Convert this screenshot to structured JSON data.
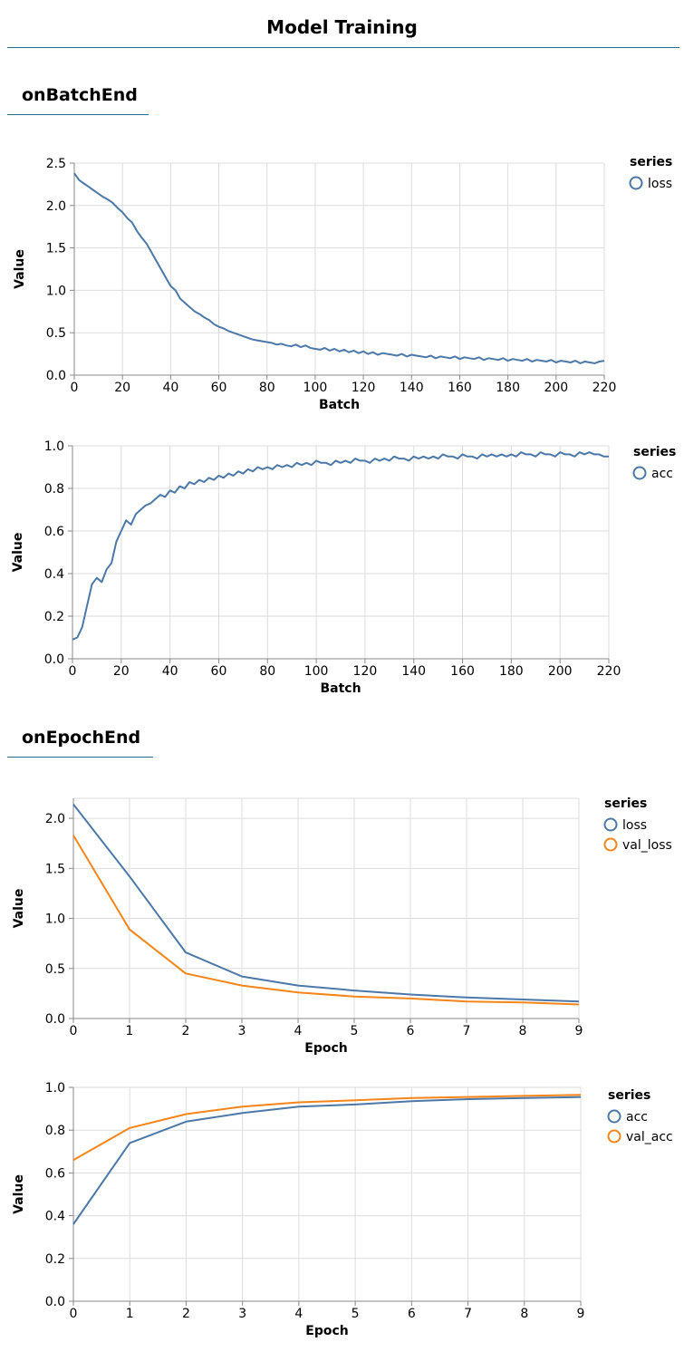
{
  "page": {
    "title": "Model Training"
  },
  "sections": [
    {
      "title": "onBatchEnd"
    },
    {
      "title": "onEpochEnd"
    }
  ],
  "colors": {
    "series1": "#4c78a8",
    "series2": "#f58518",
    "grid": "#dddddd",
    "axis": "#888888",
    "rule": "#1f6f93"
  },
  "chart_data": [
    {
      "type": "line",
      "title": "",
      "xlabel": "Batch",
      "ylabel": "Value",
      "xlim": [
        0,
        220
      ],
      "ylim": [
        0,
        2.5
      ],
      "xticks": [
        0,
        20,
        40,
        60,
        80,
        100,
        120,
        140,
        160,
        180,
        200,
        220
      ],
      "yticks": [
        0,
        0.5,
        1,
        1.5,
        2,
        2.5
      ],
      "ytick_format": "1",
      "grid": true,
      "legend": {
        "title": "series",
        "placement": "right"
      },
      "series": [
        {
          "name": "loss",
          "color": "#4c78a8",
          "x": [
            0,
            2,
            4,
            6,
            8,
            10,
            12,
            14,
            16,
            18,
            20,
            22,
            24,
            26,
            28,
            30,
            32,
            34,
            36,
            38,
            40,
            42,
            44,
            46,
            48,
            50,
            52,
            54,
            56,
            58,
            60,
            62,
            64,
            66,
            68,
            70,
            72,
            74,
            76,
            78,
            80,
            82,
            84,
            86,
            88,
            90,
            92,
            94,
            96,
            98,
            100,
            102,
            104,
            106,
            108,
            110,
            112,
            114,
            116,
            118,
            120,
            122,
            124,
            126,
            128,
            130,
            132,
            134,
            136,
            138,
            140,
            142,
            144,
            146,
            148,
            150,
            152,
            154,
            156,
            158,
            160,
            162,
            164,
            166,
            168,
            170,
            172,
            174,
            176,
            178,
            180,
            182,
            184,
            186,
            188,
            190,
            192,
            194,
            196,
            198,
            200,
            202,
            204,
            206,
            208,
            210,
            212,
            214,
            216,
            218,
            220
          ],
          "values": [
            2.38,
            2.3,
            2.26,
            2.22,
            2.18,
            2.14,
            2.1,
            2.07,
            2.03,
            1.97,
            1.92,
            1.85,
            1.8,
            1.7,
            1.62,
            1.55,
            1.45,
            1.35,
            1.25,
            1.15,
            1.05,
            1.0,
            0.9,
            0.85,
            0.8,
            0.75,
            0.72,
            0.68,
            0.65,
            0.6,
            0.57,
            0.55,
            0.52,
            0.5,
            0.48,
            0.46,
            0.44,
            0.42,
            0.41,
            0.4,
            0.39,
            0.38,
            0.36,
            0.37,
            0.35,
            0.34,
            0.36,
            0.33,
            0.35,
            0.32,
            0.31,
            0.3,
            0.32,
            0.29,
            0.31,
            0.28,
            0.3,
            0.27,
            0.29,
            0.26,
            0.28,
            0.25,
            0.27,
            0.24,
            0.26,
            0.25,
            0.24,
            0.23,
            0.25,
            0.22,
            0.24,
            0.23,
            0.22,
            0.21,
            0.23,
            0.2,
            0.22,
            0.21,
            0.2,
            0.22,
            0.19,
            0.21,
            0.2,
            0.19,
            0.21,
            0.18,
            0.2,
            0.19,
            0.18,
            0.2,
            0.17,
            0.19,
            0.18,
            0.17,
            0.19,
            0.16,
            0.18,
            0.17,
            0.16,
            0.18,
            0.15,
            0.17,
            0.16,
            0.15,
            0.17,
            0.14,
            0.16,
            0.15,
            0.14,
            0.16,
            0.17
          ]
        }
      ]
    },
    {
      "type": "line",
      "title": "",
      "xlabel": "Batch",
      "ylabel": "Value",
      "xlim": [
        0,
        220
      ],
      "ylim": [
        0,
        1
      ],
      "xticks": [
        0,
        20,
        40,
        60,
        80,
        100,
        120,
        140,
        160,
        180,
        200,
        220
      ],
      "yticks": [
        0,
        0.2,
        0.4,
        0.6,
        0.8,
        1
      ],
      "ytick_format": "1",
      "grid": true,
      "legend": {
        "title": "series",
        "placement": "right"
      },
      "series": [
        {
          "name": "acc",
          "color": "#4c78a8",
          "x": [
            0,
            2,
            4,
            6,
            8,
            10,
            12,
            14,
            16,
            18,
            20,
            22,
            24,
            26,
            28,
            30,
            32,
            34,
            36,
            38,
            40,
            42,
            44,
            46,
            48,
            50,
            52,
            54,
            56,
            58,
            60,
            62,
            64,
            66,
            68,
            70,
            72,
            74,
            76,
            78,
            80,
            82,
            84,
            86,
            88,
            90,
            92,
            94,
            96,
            98,
            100,
            102,
            104,
            106,
            108,
            110,
            112,
            114,
            116,
            118,
            120,
            122,
            124,
            126,
            128,
            130,
            132,
            134,
            136,
            138,
            140,
            142,
            144,
            146,
            148,
            150,
            152,
            154,
            156,
            158,
            160,
            162,
            164,
            166,
            168,
            170,
            172,
            174,
            176,
            178,
            180,
            182,
            184,
            186,
            188,
            190,
            192,
            194,
            196,
            198,
            200,
            202,
            204,
            206,
            208,
            210,
            212,
            214,
            216,
            218,
            220
          ],
          "values": [
            0.09,
            0.1,
            0.15,
            0.25,
            0.35,
            0.38,
            0.36,
            0.42,
            0.45,
            0.55,
            0.6,
            0.65,
            0.63,
            0.68,
            0.7,
            0.72,
            0.73,
            0.75,
            0.77,
            0.76,
            0.79,
            0.78,
            0.81,
            0.8,
            0.83,
            0.82,
            0.84,
            0.83,
            0.85,
            0.84,
            0.86,
            0.85,
            0.87,
            0.86,
            0.88,
            0.87,
            0.89,
            0.88,
            0.9,
            0.89,
            0.9,
            0.89,
            0.91,
            0.9,
            0.91,
            0.9,
            0.92,
            0.91,
            0.92,
            0.91,
            0.93,
            0.92,
            0.92,
            0.91,
            0.93,
            0.92,
            0.93,
            0.92,
            0.94,
            0.93,
            0.93,
            0.92,
            0.94,
            0.93,
            0.94,
            0.93,
            0.95,
            0.94,
            0.94,
            0.93,
            0.95,
            0.94,
            0.95,
            0.94,
            0.95,
            0.94,
            0.96,
            0.95,
            0.95,
            0.94,
            0.96,
            0.95,
            0.95,
            0.94,
            0.96,
            0.95,
            0.96,
            0.95,
            0.96,
            0.95,
            0.96,
            0.95,
            0.97,
            0.96,
            0.96,
            0.95,
            0.97,
            0.96,
            0.96,
            0.95,
            0.97,
            0.96,
            0.96,
            0.95,
            0.97,
            0.96,
            0.97,
            0.96,
            0.96,
            0.95,
            0.95
          ]
        }
      ]
    },
    {
      "type": "line",
      "title": "",
      "xlabel": "Epoch",
      "ylabel": "Value",
      "xlim": [
        0,
        9
      ],
      "ylim": [
        0,
        2.2
      ],
      "xticks": [
        0,
        1,
        2,
        3,
        4,
        5,
        6,
        7,
        8,
        9
      ],
      "yticks": [
        0,
        0.5,
        1,
        1.5,
        2
      ],
      "ytick_format": "1",
      "grid": true,
      "legend": {
        "title": "series",
        "placement": "right"
      },
      "series": [
        {
          "name": "loss",
          "color": "#4c78a8",
          "x": [
            0,
            1,
            2,
            3,
            4,
            5,
            6,
            7,
            8,
            9
          ],
          "values": [
            2.14,
            1.42,
            0.66,
            0.42,
            0.33,
            0.28,
            0.24,
            0.21,
            0.19,
            0.17
          ]
        },
        {
          "name": "val_loss",
          "color": "#f58518",
          "x": [
            0,
            1,
            2,
            3,
            4,
            5,
            6,
            7,
            8,
            9
          ],
          "values": [
            1.83,
            0.89,
            0.45,
            0.33,
            0.26,
            0.22,
            0.2,
            0.17,
            0.16,
            0.14
          ]
        }
      ]
    },
    {
      "type": "line",
      "title": "",
      "xlabel": "Epoch",
      "ylabel": "Value",
      "xlim": [
        0,
        9
      ],
      "ylim": [
        0,
        1
      ],
      "xticks": [
        0,
        1,
        2,
        3,
        4,
        5,
        6,
        7,
        8,
        9
      ],
      "yticks": [
        0,
        0.2,
        0.4,
        0.6,
        0.8,
        1
      ],
      "ytick_format": "1",
      "grid": true,
      "legend": {
        "title": "series",
        "placement": "right"
      },
      "series": [
        {
          "name": "acc",
          "color": "#4c78a8",
          "x": [
            0,
            1,
            2,
            3,
            4,
            5,
            6,
            7,
            8,
            9
          ],
          "values": [
            0.36,
            0.74,
            0.84,
            0.88,
            0.91,
            0.92,
            0.935,
            0.945,
            0.95,
            0.955
          ]
        },
        {
          "name": "val_acc",
          "color": "#f58518",
          "x": [
            0,
            1,
            2,
            3,
            4,
            5,
            6,
            7,
            8,
            9
          ],
          "values": [
            0.66,
            0.81,
            0.875,
            0.91,
            0.93,
            0.94,
            0.95,
            0.955,
            0.96,
            0.965
          ]
        }
      ]
    }
  ]
}
